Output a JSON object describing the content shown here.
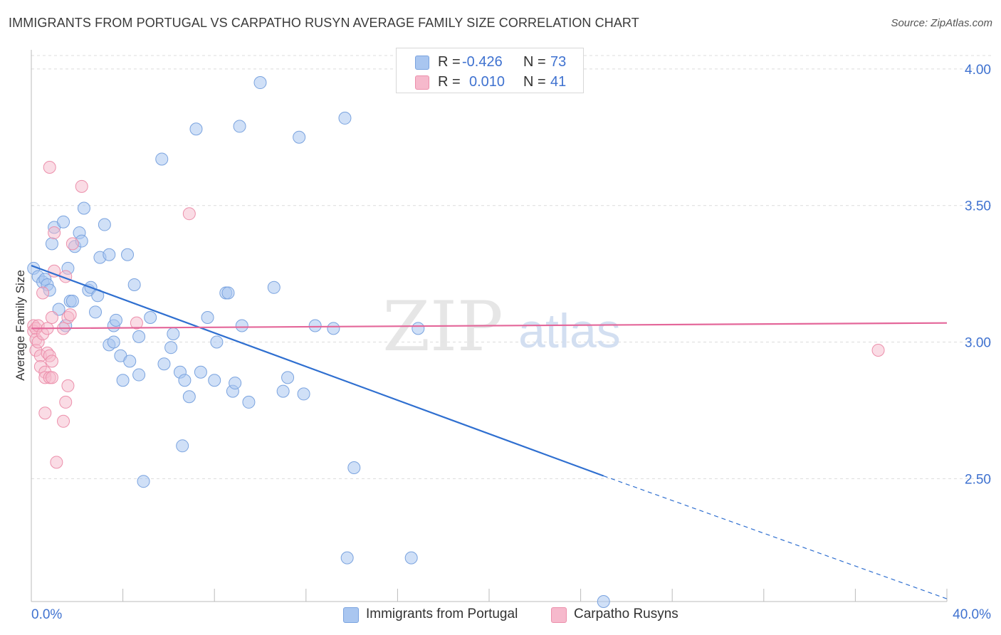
{
  "title": "IMMIGRANTS FROM PORTUGAL VS CARPATHO RUSYN AVERAGE FAMILY SIZE CORRELATION CHART",
  "source": "Source: ZipAtlas.com",
  "watermark": {
    "zip": "ZIP",
    "atlas": "atlas"
  },
  "legend": {
    "r_label": "R =",
    "n_label": "N =",
    "entries": [
      {
        "r": "-0.426",
        "n": "73",
        "color": "#a9c6f0"
      },
      {
        "r": "0.010",
        "n": "41",
        "color": "#f6b9cc"
      }
    ]
  },
  "bottom_legend": [
    "Immigrants from Portugal",
    "Carpatho Rusyns"
  ],
  "colors": {
    "blue_fill": "#a9c6f0",
    "blue_stroke": "#7aa3df",
    "blue_line": "#2f6fd0",
    "pink_fill": "#f6b9cc",
    "pink_stroke": "#ec8fab",
    "pink_line": "#e4679a",
    "tick_label": "#3f72d0",
    "grid": "#dcdcdc"
  },
  "chart_data": {
    "type": "scatter",
    "title": "IMMIGRANTS FROM PORTUGAL VS CARPATHO RUSYN AVERAGE FAMILY SIZE CORRELATION CHART",
    "xlabel": "",
    "ylabel": "Average Family Size",
    "xlim": [
      0,
      40
    ],
    "ylim": [
      2.05,
      4.07
    ],
    "x_tick_labels": [
      "0.0%",
      "40.0%"
    ],
    "y_ticks": [
      2.5,
      3.0,
      3.5,
      4.0
    ],
    "y_tick_labels": [
      "2.50",
      "3.00",
      "3.50",
      "4.00"
    ],
    "grid": true,
    "series": [
      {
        "name": "Immigrants from Portugal",
        "r": -0.426,
        "n": 73,
        "trend": {
          "x": [
            0,
            25
          ],
          "y": [
            3.28,
            2.51
          ],
          "dashed_extension_to": [
            40,
            2.06
          ]
        },
        "points": [
          [
            0.1,
            3.27
          ],
          [
            0.3,
            3.24
          ],
          [
            0.5,
            3.22
          ],
          [
            0.6,
            3.23
          ],
          [
            0.7,
            3.21
          ],
          [
            0.8,
            3.19
          ],
          [
            0.9,
            3.36
          ],
          [
            1.0,
            3.42
          ],
          [
            1.2,
            3.12
          ],
          [
            1.4,
            3.44
          ],
          [
            1.5,
            3.06
          ],
          [
            1.6,
            3.27
          ],
          [
            1.7,
            3.15
          ],
          [
            1.8,
            3.15
          ],
          [
            1.9,
            3.35
          ],
          [
            2.1,
            3.4
          ],
          [
            2.2,
            3.37
          ],
          [
            2.3,
            3.49
          ],
          [
            2.5,
            3.19
          ],
          [
            2.6,
            3.2
          ],
          [
            2.8,
            3.11
          ],
          [
            2.9,
            3.17
          ],
          [
            3.0,
            3.31
          ],
          [
            3.2,
            3.43
          ],
          [
            3.4,
            3.32
          ],
          [
            3.4,
            2.99
          ],
          [
            3.6,
            3.0
          ],
          [
            3.6,
            3.06
          ],
          [
            3.7,
            3.08
          ],
          [
            3.9,
            2.95
          ],
          [
            4.0,
            2.86
          ],
          [
            4.2,
            3.32
          ],
          [
            4.3,
            2.93
          ],
          [
            4.5,
            3.21
          ],
          [
            4.7,
            3.02
          ],
          [
            4.7,
            2.88
          ],
          [
            4.9,
            2.49
          ],
          [
            5.2,
            3.09
          ],
          [
            5.7,
            3.67
          ],
          [
            5.8,
            2.92
          ],
          [
            6.1,
            2.98
          ],
          [
            6.2,
            3.03
          ],
          [
            6.5,
            2.89
          ],
          [
            6.6,
            2.62
          ],
          [
            6.7,
            2.86
          ],
          [
            6.9,
            2.8
          ],
          [
            7.2,
            3.78
          ],
          [
            7.4,
            2.89
          ],
          [
            7.7,
            3.09
          ],
          [
            8.0,
            2.86
          ],
          [
            8.1,
            3.0
          ],
          [
            8.5,
            3.18
          ],
          [
            8.6,
            3.18
          ],
          [
            8.8,
            2.82
          ],
          [
            8.9,
            2.85
          ],
          [
            9.1,
            3.79
          ],
          [
            9.2,
            3.06
          ],
          [
            9.5,
            2.78
          ],
          [
            10.0,
            3.95
          ],
          [
            10.6,
            3.2
          ],
          [
            11.0,
            2.82
          ],
          [
            11.2,
            2.87
          ],
          [
            11.7,
            3.75
          ],
          [
            11.9,
            2.81
          ],
          [
            12.4,
            3.06
          ],
          [
            13.2,
            3.05
          ],
          [
            13.7,
            3.82
          ],
          [
            13.8,
            2.21
          ],
          [
            14.1,
            2.54
          ],
          [
            16.6,
            2.21
          ],
          [
            16.9,
            3.05
          ],
          [
            25.0,
            2.05
          ]
        ]
      },
      {
        "name": "Carpatho Rusyns",
        "r": 0.01,
        "n": 41,
        "trend": {
          "x": [
            0,
            40
          ],
          "y": [
            3.05,
            3.07
          ]
        },
        "points": [
          [
            0.1,
            3.06
          ],
          [
            0.1,
            3.04
          ],
          [
            0.2,
            3.05
          ],
          [
            0.2,
            3.01
          ],
          [
            0.2,
            2.97
          ],
          [
            0.3,
            3.06
          ],
          [
            0.3,
            3.0
          ],
          [
            0.4,
            2.95
          ],
          [
            0.4,
            2.91
          ],
          [
            0.5,
            3.03
          ],
          [
            0.5,
            3.18
          ],
          [
            0.6,
            2.89
          ],
          [
            0.6,
            2.87
          ],
          [
            0.6,
            2.74
          ],
          [
            0.7,
            3.05
          ],
          [
            0.7,
            2.96
          ],
          [
            0.8,
            3.64
          ],
          [
            0.8,
            2.95
          ],
          [
            0.8,
            2.87
          ],
          [
            0.9,
            3.09
          ],
          [
            0.9,
            2.93
          ],
          [
            0.9,
            2.87
          ],
          [
            1.0,
            3.4
          ],
          [
            1.0,
            3.26
          ],
          [
            1.1,
            2.56
          ],
          [
            1.4,
            3.05
          ],
          [
            1.4,
            2.71
          ],
          [
            1.5,
            3.24
          ],
          [
            1.5,
            2.78
          ],
          [
            1.6,
            3.09
          ],
          [
            1.6,
            2.84
          ],
          [
            1.7,
            3.1
          ],
          [
            1.8,
            3.36
          ],
          [
            2.2,
            3.57
          ],
          [
            4.6,
            3.07
          ],
          [
            6.9,
            3.47
          ],
          [
            37.0,
            2.97
          ]
        ]
      }
    ]
  }
}
